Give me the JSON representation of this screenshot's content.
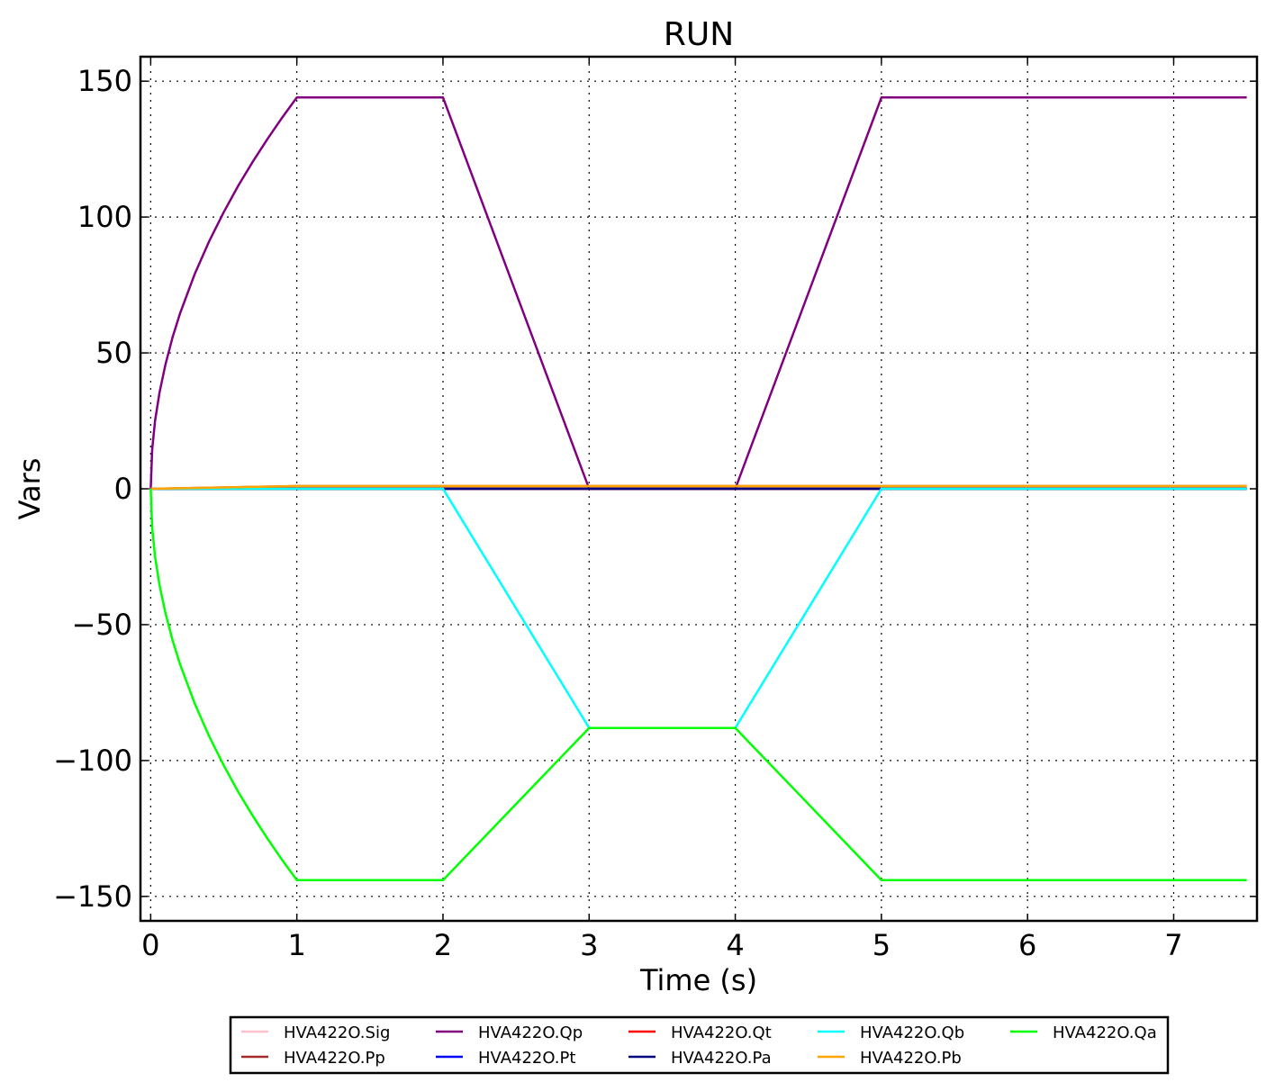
{
  "chart_data": {
    "type": "line",
    "title": "RUN",
    "xlabel": "Time (s)",
    "ylabel": "Vars",
    "xlim": [
      -0.07,
      7.57
    ],
    "ylim": [
      -159,
      159
    ],
    "xticks": [
      0,
      1,
      2,
      3,
      4,
      5,
      6,
      7
    ],
    "xtick_labels": [
      "0",
      "1",
      "2",
      "3",
      "4",
      "5",
      "6",
      "7"
    ],
    "yticks": [
      150,
      100,
      50,
      0,
      -50,
      -100,
      -150
    ],
    "ytick_labels": [
      "150",
      "100",
      "50",
      "0",
      "−50",
      "−100",
      "−150"
    ],
    "grid": true,
    "legend_position": "bottom-center",
    "series": [
      {
        "name": "HVA422O.Sig",
        "color": "#ffc0cb",
        "x": [
          0,
          1,
          7.5
        ],
        "y": [
          0,
          0,
          0
        ]
      },
      {
        "name": "HVA422O.Pp",
        "color": "#a52a2a",
        "x": [
          0,
          1,
          2,
          7.5
        ],
        "y": [
          0,
          1,
          1,
          1
        ]
      },
      {
        "name": "HVA422O.Qp",
        "color": "#800080",
        "x": [
          0,
          0.01,
          0.03,
          0.06,
          0.1,
          0.15,
          0.2,
          0.3,
          0.4,
          0.5,
          0.6,
          0.7,
          0.8,
          0.9,
          1,
          2,
          3,
          4,
          5,
          7.5
        ],
        "y": [
          0,
          14.4,
          25.0,
          35.3,
          45.5,
          55.8,
          64.4,
          78.9,
          91.1,
          101.8,
          111.6,
          120.5,
          128.8,
          136.6,
          144,
          144,
          0,
          0,
          144,
          144
        ]
      },
      {
        "name": "HVA422O.Pt",
        "color": "#0000ff",
        "x": [
          0,
          7.5
        ],
        "y": [
          0,
          0
        ]
      },
      {
        "name": "HVA422O.Qt",
        "color": "#ff0000",
        "x": [
          0,
          7.5
        ],
        "y": [
          0,
          0
        ]
      },
      {
        "name": "HVA422O.Pa",
        "color": "#000080",
        "x": [
          0,
          7.5
        ],
        "y": [
          0,
          0
        ]
      },
      {
        "name": "HVA422O.Qb",
        "color": "#00ffff",
        "x": [
          0,
          2,
          3,
          4,
          5,
          7.5
        ],
        "y": [
          0,
          0,
          -88,
          -88,
          0,
          0
        ]
      },
      {
        "name": "HVA422O.Pb",
        "color": "#ffa500",
        "x": [
          0,
          1,
          7.5
        ],
        "y": [
          0,
          1,
          1
        ]
      },
      {
        "name": "HVA422O.Qa",
        "color": "#00ff00",
        "x": [
          0,
          0.01,
          0.03,
          0.06,
          0.1,
          0.15,
          0.2,
          0.3,
          0.4,
          0.5,
          0.6,
          0.7,
          0.8,
          0.9,
          1,
          2,
          3,
          4,
          5,
          7.5
        ],
        "y": [
          0,
          -14.4,
          -25.0,
          -35.3,
          -45.5,
          -55.8,
          -64.4,
          -78.9,
          -91.1,
          -101.8,
          -111.6,
          -120.5,
          -128.8,
          -136.6,
          -144,
          -144,
          -88,
          -88,
          -144,
          -144
        ]
      }
    ],
    "legend_order": [
      "HVA422O.Sig",
      "HVA422O.Qp",
      "HVA422O.Qt",
      "HVA422O.Qb",
      "HVA422O.Qa",
      "HVA422O.Pp",
      "HVA422O.Pt",
      "HVA422O.Pa",
      "HVA422O.Pb"
    ]
  }
}
